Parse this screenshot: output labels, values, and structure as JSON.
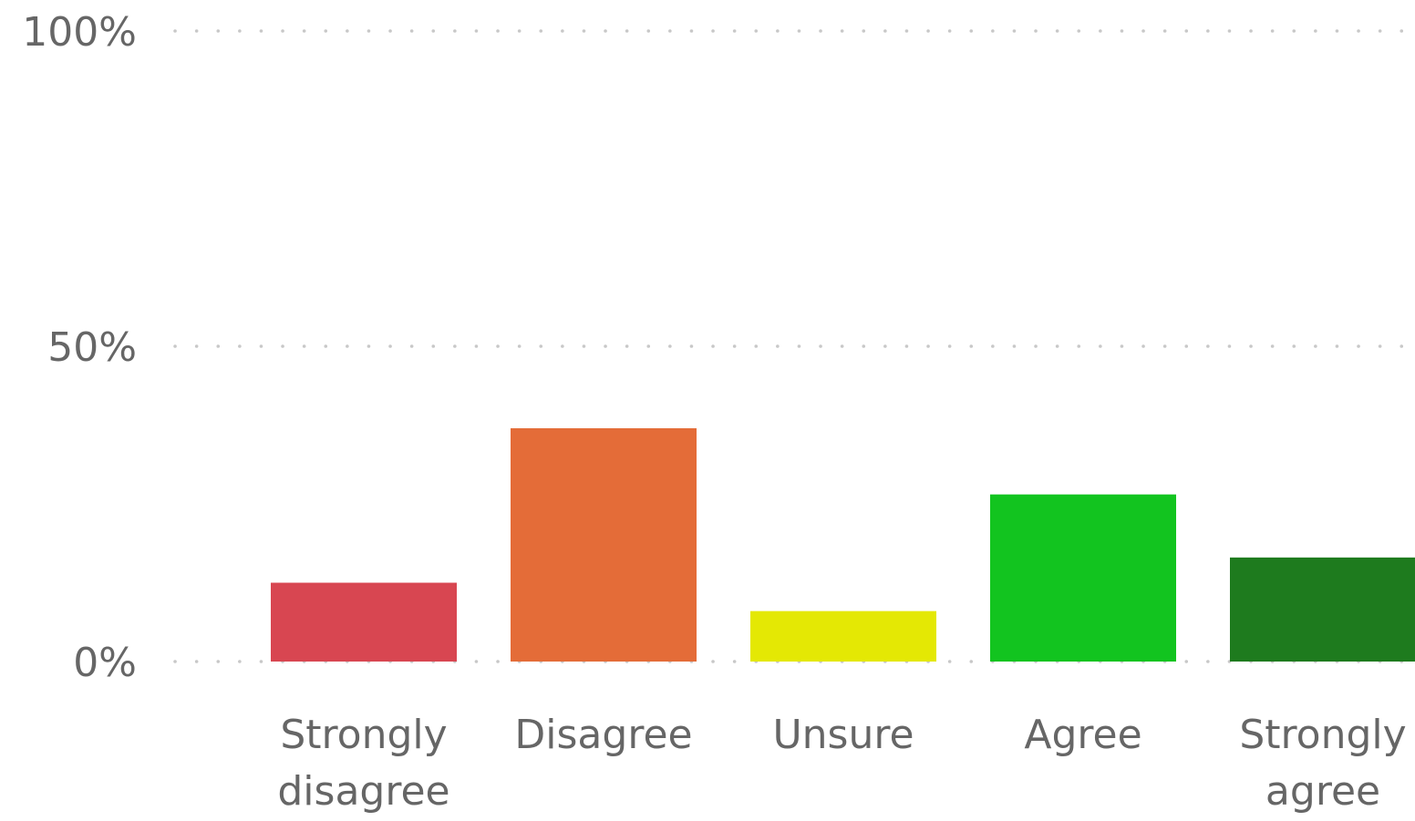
{
  "chart_data": {
    "type": "bar",
    "categories": [
      "Strongly disagree",
      "Disagree",
      "Unsure",
      "Agree",
      "Strongly agree"
    ],
    "category_lines": [
      [
        "Strongly",
        "disagree"
      ],
      [
        "Disagree"
      ],
      [
        "Unsure"
      ],
      [
        "Agree"
      ],
      [
        "Strongly",
        "agree"
      ]
    ],
    "values": [
      12.5,
      37,
      8,
      26.5,
      16.5
    ],
    "colors": [
      "#d84651",
      "#e46c38",
      "#e4e804",
      "#12c41f",
      "#1e7b1e"
    ],
    "ylim": [
      0,
      100
    ],
    "yticks": [
      {
        "value": 0,
        "label": "0%"
      },
      {
        "value": 50,
        "label": "50%"
      },
      {
        "value": 100,
        "label": "100%"
      }
    ],
    "grid": true,
    "legend": "none",
    "title": "",
    "xlabel": "",
    "ylabel": ""
  }
}
